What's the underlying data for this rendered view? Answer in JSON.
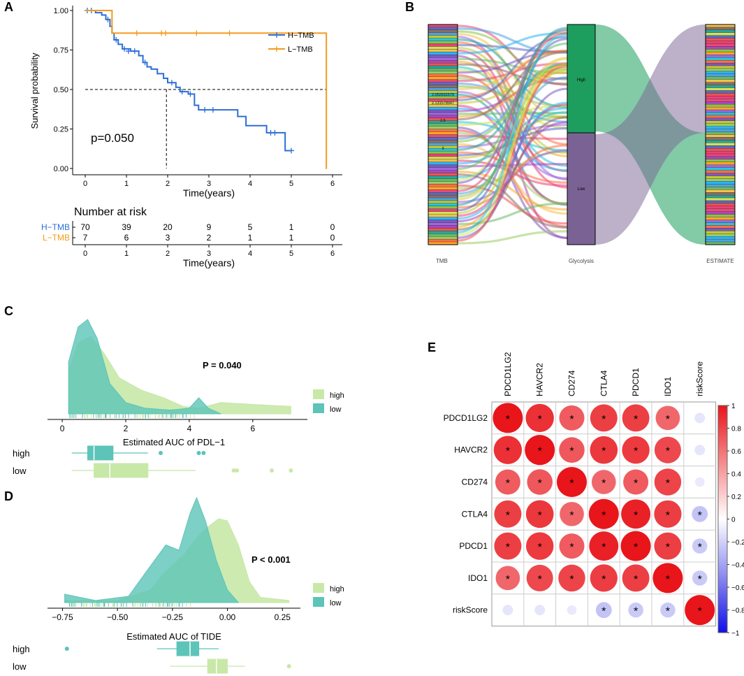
{
  "panel_labels": {
    "a": "A",
    "b": "B",
    "c": "C",
    "d": "D",
    "e": "E"
  },
  "colors": {
    "h_tmb": "#2B6FD6",
    "l_tmb": "#F39A1E",
    "high": "#C8E8A8",
    "low": "#5CC4B8",
    "sankey_high": "#1E9E5E",
    "sankey_low": "#7A6394",
    "corr_pos": "#E8151B",
    "corr_neg": "#2A2AE0"
  },
  "chart_data": [
    {
      "id": "A",
      "type": "line",
      "title": "",
      "xlabel": "Time(years)",
      "ylabel": "Survival probability",
      "xlim": [
        0,
        6
      ],
      "ylim": [
        0,
        1
      ],
      "xticks": [
        "0",
        "1",
        "2",
        "3",
        "4",
        "5",
        "6"
      ],
      "yticks": [
        "0.00",
        "0.25",
        "0.50",
        "0.75",
        "1.00"
      ],
      "annotation": "p=0.050",
      "median_marker": {
        "x": 1.97,
        "y": 0.5
      },
      "series": [
        {
          "name": "H−TMB",
          "steps": [
            [
              0,
              1
            ],
            [
              0.25,
              0.986
            ],
            [
              0.4,
              0.971
            ],
            [
              0.5,
              0.943
            ],
            [
              0.6,
              0.9
            ],
            [
              0.65,
              0.857
            ],
            [
              0.7,
              0.814
            ],
            [
              0.8,
              0.786
            ],
            [
              0.9,
              0.757
            ],
            [
              1.1,
              0.743
            ],
            [
              1.3,
              0.714
            ],
            [
              1.4,
              0.671
            ],
            [
              1.5,
              0.643
            ],
            [
              1.6,
              0.629
            ],
            [
              1.75,
              0.6
            ],
            [
              1.9,
              0.571
            ],
            [
              2.0,
              0.543
            ],
            [
              2.2,
              0.514
            ],
            [
              2.3,
              0.486
            ],
            [
              2.5,
              0.471
            ],
            [
              2.65,
              0.4
            ],
            [
              2.75,
              0.371
            ],
            [
              3.7,
              0.329
            ],
            [
              3.9,
              0.271
            ],
            [
              4.4,
              0.226
            ],
            [
              4.85,
              0.113
            ],
            [
              5.0,
              0.113
            ]
          ],
          "censor": [
            [
              0.05,
              1
            ],
            [
              0.15,
              1
            ],
            [
              0.55,
              0.943
            ],
            [
              0.75,
              0.814
            ],
            [
              0.95,
              0.757
            ],
            [
              1.05,
              0.743
            ],
            [
              1.2,
              0.743
            ],
            [
              1.45,
              0.671
            ],
            [
              2.1,
              0.543
            ],
            [
              2.35,
              0.486
            ],
            [
              2.55,
              0.471
            ],
            [
              2.9,
              0.371
            ],
            [
              3.1,
              0.371
            ],
            [
              4.5,
              0.226
            ],
            [
              4.6,
              0.226
            ],
            [
              5.0,
              0.113
            ]
          ]
        },
        {
          "name": "L−TMB",
          "steps": [
            [
              0,
              1
            ],
            [
              0.6,
              1
            ],
            [
              0.65,
              0.857
            ],
            [
              5.85,
              0.857
            ],
            [
              5.85,
              0
            ],
            [
              5.86,
              0
            ]
          ],
          "censor": [
            [
              1.25,
              0.857
            ],
            [
              1.85,
              0.857
            ],
            [
              1.95,
              0.857
            ],
            [
              2.7,
              0.857
            ],
            [
              3.5,
              0.857
            ]
          ]
        }
      ],
      "risk_table": {
        "title": "Number at risk",
        "xlabel": "Time(years)",
        "rows": [
          {
            "name": "H−TMB",
            "values": [
              "70",
              "39",
              "20",
              "9",
              "5",
              "1",
              "0"
            ]
          },
          {
            "name": "L−TMB",
            "values": [
              "7",
              "6",
              "3",
              "2",
              "1",
              "1",
              "0"
            ]
          }
        ]
      }
    },
    {
      "id": "B",
      "type": "sankey",
      "axis_labels": [
        "TMB",
        "Glycolysis",
        "ESTIMATE"
      ],
      "nodes": [
        {
          "name": "High",
          "share": 0.5
        },
        {
          "name": "Low",
          "share": 0.5
        }
      ],
      "tmb_value_labels": [
        "2.052631579",
        "2.131578947",
        "2.5",
        "3"
      ]
    },
    {
      "id": "C",
      "type": "area",
      "xlabel": "Estimated AUC of PDL−1",
      "xticks": [
        "0",
        "2",
        "4",
        "6"
      ],
      "xlim": [
        -0.2,
        7.5
      ],
      "annotation": "P = 0.040",
      "series": [
        {
          "name": "high",
          "density": [
            [
              0.2,
              0.45
            ],
            [
              0.5,
              0.75
            ],
            [
              0.9,
              0.82
            ],
            [
              1.3,
              0.65
            ],
            [
              1.8,
              0.38
            ],
            [
              2.5,
              0.25
            ],
            [
              3.2,
              0.17
            ],
            [
              3.8,
              0.08
            ],
            [
              4.3,
              0.06
            ],
            [
              5,
              0.12
            ],
            [
              6,
              0.1
            ],
            [
              7.2,
              0.08
            ]
          ]
        },
        {
          "name": "low",
          "density": [
            [
              0.2,
              0.55
            ],
            [
              0.5,
              0.92
            ],
            [
              0.8,
              1.0
            ],
            [
              1.1,
              0.8
            ],
            [
              1.5,
              0.32
            ],
            [
              2,
              0.12
            ],
            [
              2.6,
              0.06
            ],
            [
              3.4,
              0.04
            ],
            [
              4.0,
              0.06
            ],
            [
              4.3,
              0.17
            ],
            [
              4.6,
              0.06
            ],
            [
              5.0,
              0.0
            ]
          ]
        }
      ],
      "boxplots": [
        {
          "name": "high",
          "q1": 0.8,
          "median": 1.0,
          "q3": 1.6,
          "whisker_low": 0.3,
          "whisker_high": 2.7,
          "outliers": [
            3.1,
            4.3,
            4.45
          ]
        },
        {
          "name": "low",
          "q1": 1.0,
          "median": 1.5,
          "q3": 2.7,
          "whisker_low": 0.3,
          "whisker_high": 4.2,
          "outliers": [
            5.4,
            5.5,
            6.6,
            7.2
          ]
        }
      ]
    },
    {
      "id": "D",
      "type": "area",
      "xlabel": "Estimated AUC of TIDE",
      "xticks": [
        "−0.75",
        "−0.50",
        "−0.25",
        "0.00",
        "0.25"
      ],
      "xlim": [
        -0.78,
        0.3
      ],
      "annotation": "P < 0.001",
      "series": [
        {
          "name": "high",
          "density": [
            [
              -0.74,
              0.02
            ],
            [
              -0.5,
              0.02
            ],
            [
              -0.35,
              0.12
            ],
            [
              -0.28,
              0.3
            ],
            [
              -0.2,
              0.45
            ],
            [
              -0.14,
              0.62
            ],
            [
              -0.09,
              0.72
            ],
            [
              -0.04,
              0.8
            ],
            [
              0.0,
              0.78
            ],
            [
              0.05,
              0.55
            ],
            [
              0.1,
              0.2
            ],
            [
              0.15,
              0.05
            ],
            [
              0.28,
              0.02
            ]
          ]
        },
        {
          "name": "low",
          "density": [
            [
              -0.74,
              0.08
            ],
            [
              -0.6,
              0.02
            ],
            [
              -0.45,
              0.06
            ],
            [
              -0.35,
              0.35
            ],
            [
              -0.28,
              0.55
            ],
            [
              -0.22,
              0.5
            ],
            [
              -0.17,
              0.85
            ],
            [
              -0.14,
              1.0
            ],
            [
              -0.1,
              0.78
            ],
            [
              -0.05,
              0.4
            ],
            [
              0.0,
              0.12
            ],
            [
              0.05,
              0.0
            ]
          ]
        }
      ],
      "boxplots": [
        {
          "name": "high",
          "q1": -0.23,
          "median": -0.17,
          "q3": -0.13,
          "whisker_low": -0.32,
          "whisker_high": -0.04,
          "outliers": [
            -0.73
          ]
        },
        {
          "name": "low",
          "q1": -0.09,
          "median": -0.05,
          "q3": 0.0,
          "whisker_low": -0.26,
          "whisker_high": 0.08,
          "outliers": [
            0.28
          ]
        }
      ]
    },
    {
      "id": "E",
      "type": "heatmap",
      "labels": [
        "PDCD1LG2",
        "HAVCR2",
        "CD274",
        "CTLA4",
        "PDCD1",
        "IDO1",
        "riskScore"
      ],
      "matrix": [
        [
          1.0,
          0.88,
          0.7,
          0.82,
          0.82,
          0.65,
          -0.12
        ],
        [
          0.88,
          1.0,
          0.72,
          0.85,
          0.84,
          0.78,
          -0.12
        ],
        [
          0.7,
          0.72,
          1.0,
          0.65,
          0.7,
          0.8,
          -0.1
        ],
        [
          0.82,
          0.85,
          0.65,
          1.0,
          0.95,
          0.83,
          -0.28
        ],
        [
          0.82,
          0.84,
          0.7,
          0.95,
          1.0,
          0.82,
          -0.25
        ],
        [
          0.65,
          0.78,
          0.8,
          0.83,
          0.82,
          1.0,
          -0.25
        ],
        [
          -0.12,
          -0.12,
          -0.1,
          -0.28,
          -0.25,
          -0.25,
          1.0
        ]
      ],
      "significant": [
        [
          1,
          1,
          1,
          1,
          1,
          1,
          0
        ],
        [
          1,
          1,
          1,
          1,
          1,
          1,
          0
        ],
        [
          1,
          1,
          1,
          1,
          1,
          1,
          0
        ],
        [
          1,
          1,
          1,
          1,
          1,
          1,
          1
        ],
        [
          1,
          1,
          1,
          1,
          1,
          1,
          1
        ],
        [
          1,
          1,
          1,
          1,
          1,
          1,
          1
        ],
        [
          0,
          0,
          0,
          1,
          1,
          1,
          1
        ]
      ],
      "star": "*",
      "colorbar_ticks": [
        "1",
        "0.8",
        "0.6",
        "0.4",
        "0.2",
        "0",
        "−0.2",
        "−0.4",
        "−0.6",
        "−0.8",
        "−1"
      ],
      "colorbar_range": [
        -1,
        1
      ]
    }
  ]
}
